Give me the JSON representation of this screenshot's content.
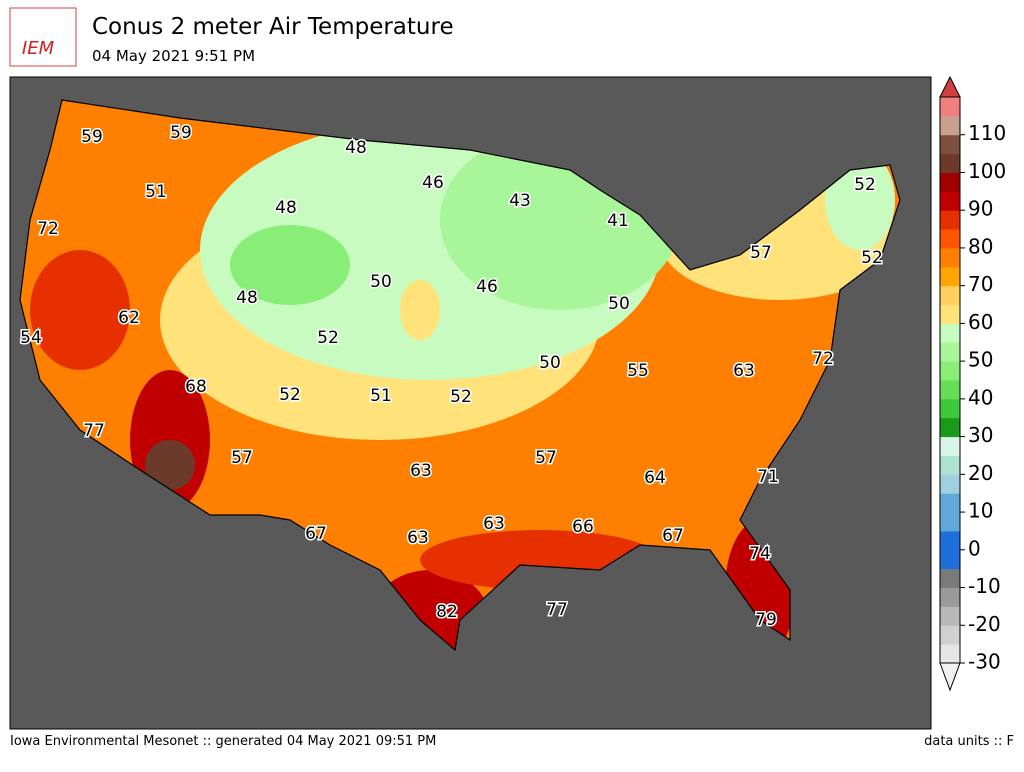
{
  "header": {
    "logo": "IEM",
    "title": "Conus 2 meter Air Temperature",
    "subtitle": "04 May 2021 9:51 PM"
  },
  "map_labels": [
    59,
    59,
    48,
    46,
    52,
    43,
    51,
    48,
    41,
    72,
    57,
    52,
    50,
    46,
    48,
    62,
    50,
    52,
    54,
    72,
    50,
    55,
    63,
    68,
    52,
    51,
    52,
    77,
    57,
    57,
    63,
    64,
    71,
    67,
    63,
    63,
    66,
    67,
    74,
    77,
    82,
    79
  ],
  "colorbar": {
    "ticks": [
      -30,
      -20,
      -10,
      0,
      10,
      20,
      30,
      40,
      50,
      60,
      70,
      80,
      90,
      100,
      110
    ],
    "range": [
      -30,
      120
    ],
    "colors": [
      "#e6e6e6",
      "#d0d0d0",
      "#b8b8b8",
      "#9a9a9a",
      "#7a7a7a",
      "#1e6fdc",
      "#1e6fdc",
      "#5fa8d8",
      "#5fa8d8",
      "#9fcfe0",
      "#aee2d0",
      "#d8f5e8",
      "#1a9a1a",
      "#3cc83c",
      "#66dd55",
      "#88ee77",
      "#a8f59a",
      "#c8fbc0",
      "#ffe27a",
      "#ffd060",
      "#ffa500",
      "#ff7f00",
      "#ff5500",
      "#e63000",
      "#c00000",
      "#a00000",
      "#6b3a2a",
      "#7e5040",
      "#c8a090",
      "#f08080"
    ]
  },
  "footer": {
    "left": "Iowa Environmental Mesonet :: generated 04 May 2021 09:51 PM",
    "right": "data units :: F"
  }
}
